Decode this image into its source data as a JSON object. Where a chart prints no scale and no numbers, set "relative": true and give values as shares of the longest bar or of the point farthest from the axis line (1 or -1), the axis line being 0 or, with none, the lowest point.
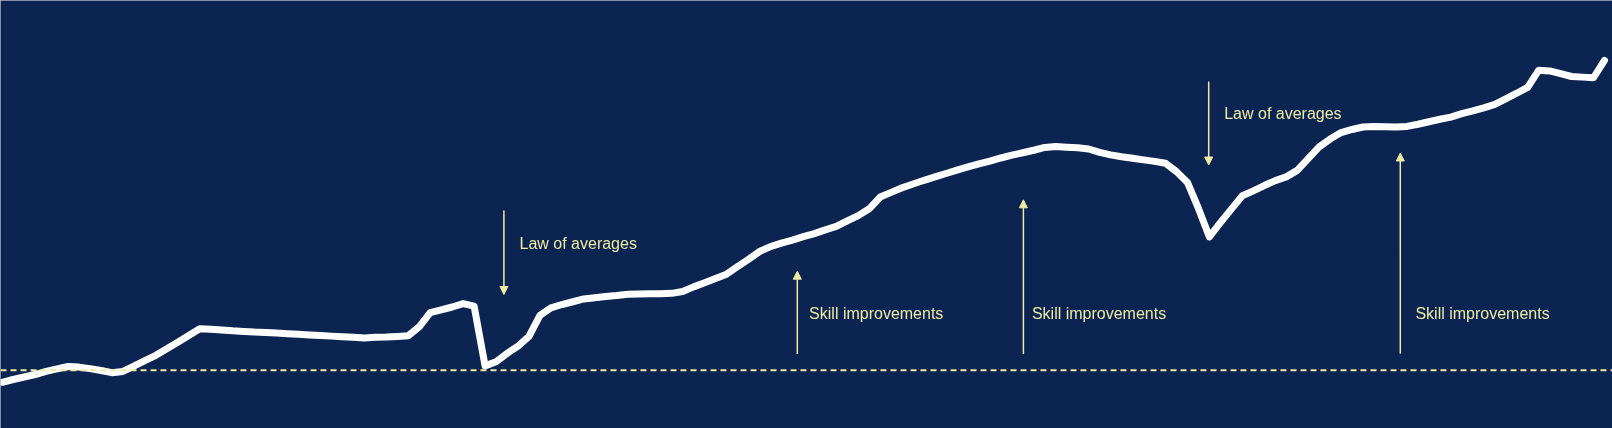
{
  "chart_data": {
    "type": "line",
    "relative": true,
    "tick_labels": false,
    "categories": [
      null,
      null,
      null,
      null,
      null,
      null,
      null,
      null,
      null,
      null,
      null,
      null,
      null,
      null,
      null,
      null,
      null,
      null,
      null,
      null,
      null,
      null,
      null,
      null,
      null,
      null,
      null,
      null,
      null,
      null,
      null,
      null,
      null,
      null,
      null,
      null,
      null,
      null,
      null,
      null,
      null,
      null,
      null,
      null,
      null,
      null,
      null,
      null,
      null,
      null,
      null,
      null,
      null,
      null,
      null,
      null,
      null,
      null,
      null,
      null,
      null,
      null,
      null,
      null,
      null,
      null,
      null,
      null,
      null,
      null,
      null,
      null,
      null,
      null,
      null,
      null,
      null,
      null,
      null,
      null,
      null,
      null,
      null,
      null,
      null,
      null,
      null,
      null,
      null,
      null,
      null,
      null,
      null,
      null,
      null,
      null,
      null,
      null,
      null,
      null,
      null,
      null,
      null,
      null,
      null,
      null,
      null,
      null,
      null,
      null,
      null,
      null,
      null,
      null,
      null,
      null,
      null,
      null,
      null,
      null,
      null,
      null,
      null,
      null,
      null,
      null,
      null,
      null,
      null,
      null,
      null,
      null,
      null,
      null,
      null,
      null,
      null,
      null,
      null,
      null,
      null,
      null,
      null,
      null,
      null,
      null,
      null
    ],
    "series": [
      {
        "color": "#ffffff",
        "values": [
          -0.039,
          -0.03,
          -0.022,
          -0.014,
          -0.004,
          0.004,
          0.012,
          0.01,
          0.005,
          -0.001,
          -0.008,
          -0.004,
          0.013,
          0.031,
          0.048,
          0.069,
          0.09,
          0.112,
          0.134,
          0.132,
          0.13,
          0.127,
          0.125,
          0.123,
          0.122,
          0.12,
          0.118,
          0.116,
          0.114,
          0.112,
          0.11,
          0.108,
          0.106,
          0.104,
          0.106,
          0.107,
          0.109,
          0.111,
          0.14,
          0.186,
          0.195,
          0.204,
          0.215,
          0.207,
          0.014,
          0.027,
          0.054,
          0.078,
          0.109,
          0.177,
          0.201,
          0.212,
          0.221,
          0.23,
          0.234,
          0.238,
          0.241,
          0.245,
          0.246,
          0.247,
          0.247,
          0.248,
          0.254,
          0.269,
          0.282,
          0.296,
          0.31,
          0.334,
          0.358,
          0.383,
          0.399,
          0.41,
          0.42,
          0.431,
          0.441,
          0.453,
          0.464,
          0.482,
          0.499,
          0.521,
          0.559,
          0.574,
          0.589,
          0.601,
          0.613,
          0.624,
          0.635,
          0.646,
          0.656,
          0.666,
          0.675,
          0.685,
          0.694,
          0.702,
          0.71,
          0.719,
          0.722,
          0.72,
          0.718,
          0.714,
          0.703,
          0.695,
          0.689,
          0.684,
          0.679,
          0.674,
          0.668,
          0.641,
          0.606,
          0.522,
          0.43,
          0.476,
          0.52,
          0.563,
          0.579,
          0.596,
          0.612,
          0.624,
          0.645,
          0.683,
          0.721,
          0.746,
          0.767,
          0.777,
          0.785,
          0.787,
          0.786,
          0.785,
          0.787,
          0.794,
          0.802,
          0.81,
          0.817,
          0.828,
          0.837,
          0.847,
          0.858,
          0.876,
          0.894,
          0.913,
          0.968,
          0.966,
          0.957,
          0.948,
          0.946,
          0.944,
          1.0
        ]
      }
    ],
    "ref_lines": [
      {
        "axis": "y",
        "value": 0,
        "color": "#eeeba3",
        "line_style": "dashed"
      }
    ],
    "annotations": [
      "Law of averages",
      "Skill improvements",
      "Skill improvements",
      "Law of averages",
      "Skill improvements"
    ]
  }
}
